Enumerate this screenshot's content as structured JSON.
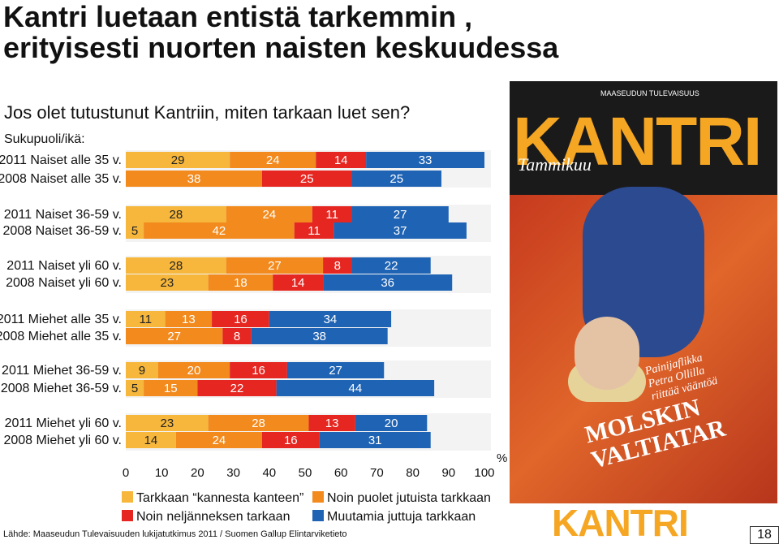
{
  "title_line1": "Kantri luetaan entistä tarkemmin ,",
  "title_line2": "erityisesti nuorten naisten keskuudessa",
  "question": "Jos olet tutustunut Kantriin, miten tarkaan luet sen?",
  "group_label": "Sukupuoli/ikä:",
  "percent_label": "%",
  "source": "Lähde: Maaseudun Tulevaisuuden lukijatutkimus 2011 / Suomen Gallup Elintarviketieto",
  "page_number": "18",
  "cover": {
    "magazine": "MAASEUDUN TULEVAISUUS",
    "brand": "KANTRI",
    "tagline": "Tammikuu",
    "blurb_line1": "Painijaflikka",
    "blurb_line2": "Petra Ollilla",
    "blurb_line3": "riittää vääntöä",
    "headline_line1": "MOLSKIN",
    "headline_line2": "VALTIATAR"
  },
  "logo": "KANTRI",
  "colors": {
    "tarkkaan": "#f6b73c",
    "puolet": "#f28a1e",
    "neljannes": "#e52621",
    "muutamia": "#1f63b4"
  },
  "chart_data": {
    "type": "bar",
    "orientation": "horizontal",
    "stacked": true,
    "xlim": [
      0,
      100
    ],
    "xticks": [
      0,
      10,
      20,
      30,
      40,
      50,
      60,
      70,
      80,
      90,
      100
    ],
    "xlabel": "%",
    "legend_position": "bottom",
    "series": [
      {
        "name": "Tarkkaan “kannesta kanteen”",
        "color": "#f6b73c"
      },
      {
        "name": "Noin puolet jutuista tarkkaan",
        "color": "#f28a1e"
      },
      {
        "name": "Noin neljänneksen tarkaan",
        "color": "#e52621"
      },
      {
        "name": "Muutamia juttuja tarkkaan",
        "color": "#1f63b4"
      }
    ],
    "categories": [
      "2011 Naiset alle 35 v.",
      "2008 Naiset alle 35 v.",
      "2011 Naiset 36-59 v.",
      "2008 Naiset 36-59 v.",
      "2011 Naiset yli 60 v.",
      "2008 Naiset yli 60 v.",
      "2011 Miehet alle 35 v.",
      "2008 Miehet alle 35 v.",
      "2011 Miehet 36-59 v.",
      "2008 Miehet 36-59 v.",
      "2011 Miehet yli 60 v.",
      "2008 Miehet yli 60 v."
    ],
    "values": [
      [
        29,
        24,
        14,
        33
      ],
      [
        0,
        38,
        25,
        25
      ],
      [
        28,
        24,
        11,
        27
      ],
      [
        5,
        42,
        11,
        37
      ],
      [
        28,
        27,
        8,
        22
      ],
      [
        23,
        18,
        14,
        36
      ],
      [
        11,
        13,
        16,
        34
      ],
      [
        0,
        27,
        8,
        38
      ],
      [
        9,
        20,
        16,
        27
      ],
      [
        5,
        15,
        22,
        44
      ],
      [
        23,
        28,
        13,
        20
      ],
      [
        14,
        24,
        16,
        31
      ]
    ]
  }
}
